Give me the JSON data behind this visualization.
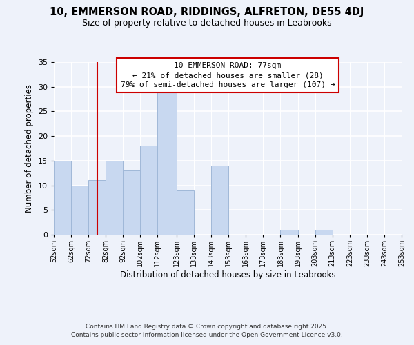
{
  "title": "10, EMMERSON ROAD, RIDDINGS, ALFRETON, DE55 4DJ",
  "subtitle": "Size of property relative to detached houses in Leabrooks",
  "xlabel": "Distribution of detached houses by size in Leabrooks",
  "ylabel": "Number of detached properties",
  "bin_labels": [
    "52sqm",
    "62sqm",
    "72sqm",
    "82sqm",
    "92sqm",
    "102sqm",
    "112sqm",
    "123sqm",
    "133sqm",
    "143sqm",
    "153sqm",
    "163sqm",
    "173sqm",
    "183sqm",
    "193sqm",
    "203sqm",
    "213sqm",
    "223sqm",
    "233sqm",
    "243sqm",
    "253sqm"
  ],
  "bin_edges": [
    52,
    62,
    72,
    82,
    92,
    102,
    112,
    123,
    133,
    143,
    153,
    163,
    173,
    183,
    193,
    203,
    213,
    223,
    233,
    243,
    253
  ],
  "bar_heights": [
    15,
    10,
    11,
    15,
    13,
    18,
    29,
    9,
    0,
    14,
    0,
    0,
    0,
    1,
    0,
    1,
    0,
    0,
    0,
    0
  ],
  "bar_color": "#c8d8f0",
  "bar_edgecolor": "#a0b8d8",
  "property_line_x": 77,
  "property_line_color": "#cc0000",
  "annotation_line1": "10 EMMERSON ROAD: 77sqm",
  "annotation_line2": "← 21% of detached houses are smaller (28)",
  "annotation_line3": "79% of semi-detached houses are larger (107) →",
  "annotation_box_edgecolor": "#cc0000",
  "annotation_box_facecolor": "#ffffff",
  "ylim": [
    0,
    35
  ],
  "yticks": [
    0,
    5,
    10,
    15,
    20,
    25,
    30,
    35
  ],
  "background_color": "#eef2fa",
  "footer_line1": "Contains HM Land Registry data © Crown copyright and database right 2025.",
  "footer_line2": "Contains public sector information licensed under the Open Government Licence v3.0."
}
